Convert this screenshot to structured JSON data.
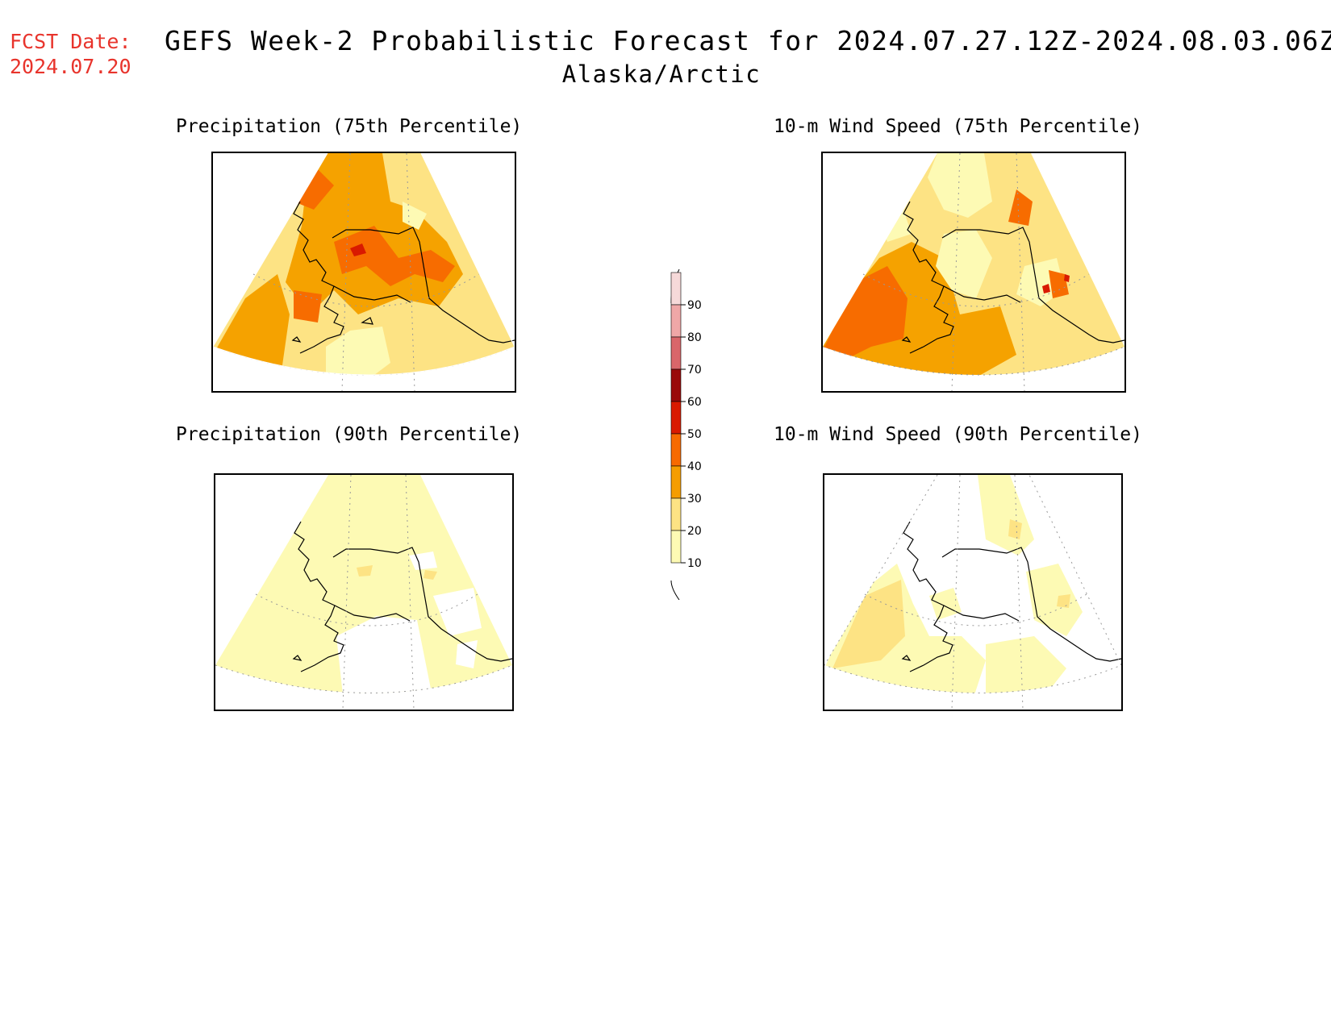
{
  "header": {
    "fcst_label": "FCST Date:",
    "fcst_date": "2024.07.20",
    "title": "GEFS Week-2 Probabilistic Forecast for 2024.07.27.12Z-2024.08.03.06Z",
    "subtitle": "Alaska/Arctic"
  },
  "panels": {
    "precip75": {
      "title": "Precipitation (75th Percentile)"
    },
    "wind75": {
      "title": "10-m Wind Speed (75th Percentile)"
    },
    "precip90": {
      "title": "Precipitation (90th Percentile)"
    },
    "wind90": {
      "title": "10-m Wind Speed (90th Percentile)"
    }
  },
  "colorbar": {
    "levels": [
      "90",
      "80",
      "70",
      "60",
      "50",
      "40",
      "30",
      "20",
      "10"
    ],
    "colors": [
      "#f6d9d9",
      "#efa7a7",
      "#d9666a",
      "#9a0a0a",
      "#d91a00",
      "#f76a00",
      "#f59d00",
      "#fde384",
      "#fdfab4"
    ]
  },
  "legend_colors": {
    "c10": "#fdfab4",
    "c20": "#fde384",
    "c30": "#f5a200",
    "c40": "#f76c00",
    "c50": "#d91a00"
  }
}
